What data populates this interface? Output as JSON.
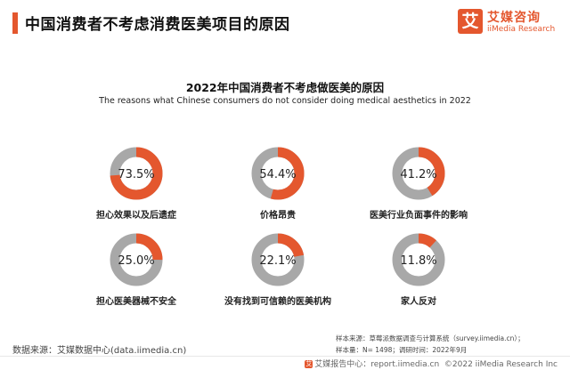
{
  "header": {
    "title": "中国消费者不考虑消费医美项目的原因"
  },
  "brand": {
    "cn": "艾媒咨询",
    "en": "iiMedia Research",
    "mark": "艾"
  },
  "colors": {
    "accent": "#e4572e",
    "track": "#a8a8a8"
  },
  "chart_data": {
    "type": "donut",
    "title": "2022年中国消费者不考虑做医美的原因",
    "subtitle": "The reasons what Chinese consumers do not consider doing medical aesthetics in 2022",
    "unit": "%",
    "categories": [
      "担心效果以及后遗症",
      "价格昂贵",
      "医美行业负面事件的影响",
      "担心医美器械不安全",
      "没有找到可信赖的医美机构",
      "家人反对"
    ],
    "values": [
      73.5,
      54.4,
      41.2,
      25.0,
      22.1,
      11.8
    ],
    "labels": [
      "73.5%",
      "54.4%",
      "41.2%",
      "25.0%",
      "22.1%",
      "11.8%"
    ]
  },
  "footer": {
    "source": "数据来源：艾媒数据中心(data.iimedia.cn)",
    "note_source": "样本来源：草莓派数据调查与计算系统（survey.iimedia.cn）；",
    "note_sample": "样本量：N= 1498；调研时间：2022年9月",
    "report": "艾媒报告中心：report.iimedia.cn",
    "copyright": "©2022  iiMedia Research  Inc"
  }
}
